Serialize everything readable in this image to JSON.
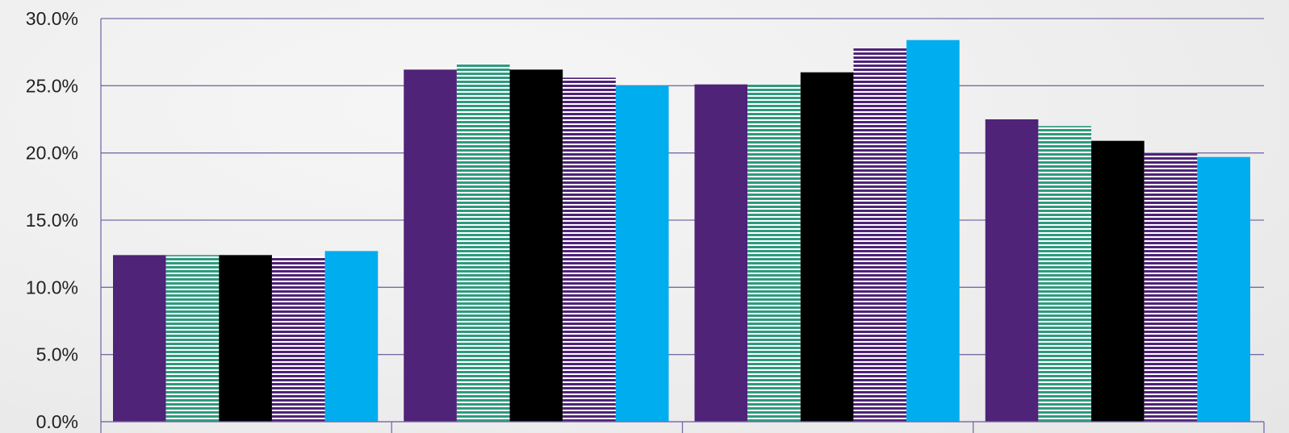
{
  "chart_data": {
    "type": "bar",
    "title": "",
    "xlabel": "",
    "ylabel": "",
    "categories": [
      "",
      "",
      "",
      ""
    ],
    "ylim": [
      0,
      30
    ],
    "y_ticks": [
      "0.0%",
      "5.0%",
      "10.0%",
      "15.0%",
      "20.0%",
      "25.0%",
      "30.0%"
    ],
    "grid": true,
    "legend": "none",
    "series": [
      {
        "color": "#4f2378",
        "pattern": "solid",
        "values": [
          12.4,
          26.2,
          25.1,
          22.5
        ]
      },
      {
        "color": "#2e9a7e",
        "pattern": "horizontal-stripes",
        "values": [
          12.4,
          26.7,
          25.1,
          22.0
        ]
      },
      {
        "color": "#000000",
        "pattern": "solid",
        "values": [
          12.4,
          26.2,
          26.0,
          20.9
        ]
      },
      {
        "color": "#4f2378",
        "pattern": "horizontal-stripes",
        "values": [
          12.3,
          25.6,
          27.8,
          20.0
        ]
      },
      {
        "color": "#00adef",
        "pattern": "solid",
        "values": [
          12.7,
          25.0,
          28.4,
          19.7
        ]
      }
    ]
  }
}
